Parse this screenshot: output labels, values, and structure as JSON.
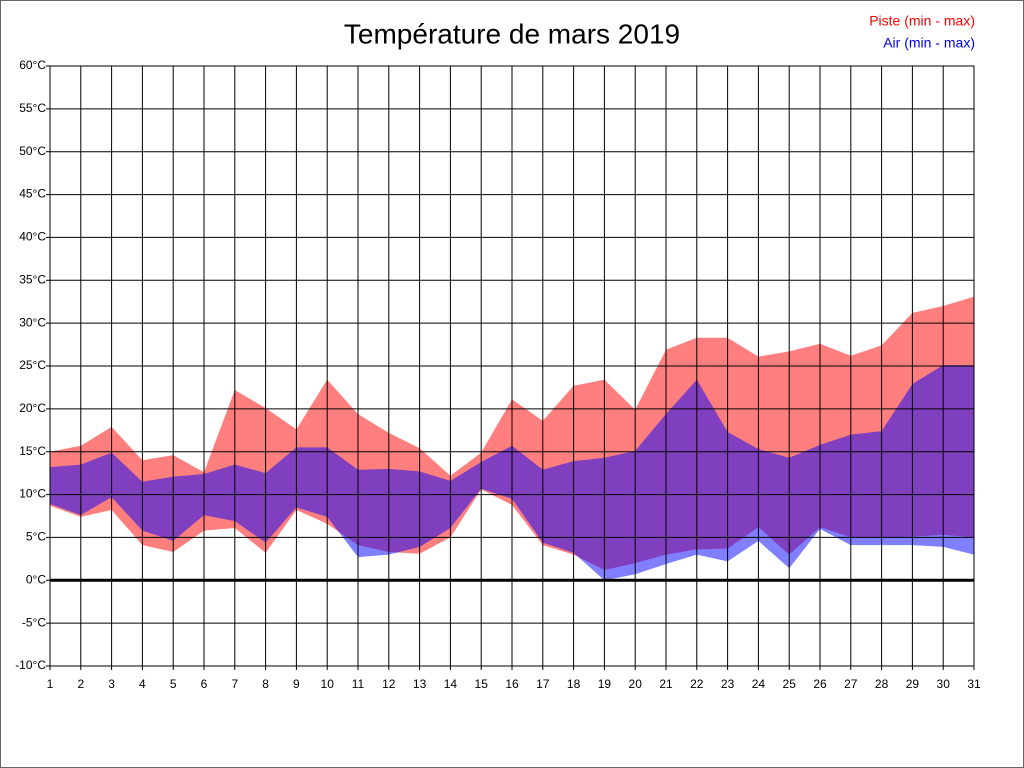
{
  "chart_data": {
    "type": "range-area",
    "title": "Température de mars 2019",
    "x": [
      1,
      2,
      3,
      4,
      5,
      6,
      7,
      8,
      9,
      10,
      11,
      12,
      13,
      14,
      15,
      16,
      17,
      18,
      19,
      20,
      21,
      22,
      23,
      24,
      25,
      26,
      27,
      28,
      29,
      30,
      31
    ],
    "xlim": [
      1,
      31
    ],
    "xticks": [
      1,
      2,
      3,
      4,
      5,
      6,
      7,
      8,
      9,
      10,
      11,
      12,
      13,
      14,
      15,
      16,
      17,
      18,
      19,
      20,
      21,
      22,
      23,
      24,
      25,
      26,
      27,
      28,
      29,
      30,
      31
    ],
    "ylim": [
      -10,
      60
    ],
    "yticks": [
      {
        "value": -10,
        "label": "-10°C"
      },
      {
        "value": -5,
        "label": "-5°C"
      },
      {
        "value": 0,
        "label": "0°C"
      },
      {
        "value": 5,
        "label": "5°C"
      },
      {
        "value": 10,
        "label": "10°C"
      },
      {
        "value": 15,
        "label": "15°C"
      },
      {
        "value": 20,
        "label": "20°C"
      },
      {
        "value": 25,
        "label": "25°C"
      },
      {
        "value": 30,
        "label": "30°C"
      },
      {
        "value": 35,
        "label": "35°C"
      },
      {
        "value": 40,
        "label": "40°C"
      },
      {
        "value": 45,
        "label": "45°C"
      },
      {
        "value": 50,
        "label": "50°C"
      },
      {
        "value": 55,
        "label": "55°C"
      },
      {
        "value": 60,
        "label": "60°C"
      }
    ],
    "grid": true,
    "legend": "top-right",
    "series": [
      {
        "name": "Piste (min - max)",
        "color": "#ff0000",
        "low": [
          8.7,
          7.4,
          8.2,
          4.1,
          3.3,
          5.8,
          6.1,
          3.2,
          8.2,
          6.6,
          4.1,
          3.3,
          3.1,
          5.0,
          10.6,
          8.8,
          4.1,
          3.0,
          1.2,
          2.0,
          3.0,
          3.6,
          3.7,
          6.2,
          3.0,
          6.2,
          5.0,
          5.0,
          5.1,
          5.3,
          5.0
        ],
        "high": [
          15.0,
          15.7,
          17.9,
          14.0,
          14.6,
          12.6,
          22.2,
          20.1,
          17.6,
          23.4,
          19.4,
          17.2,
          15.4,
          12.2,
          14.9,
          21.1,
          18.6,
          22.7,
          23.4,
          19.9,
          26.9,
          28.3,
          28.3,
          26.1,
          26.7,
          27.6,
          26.2,
          27.4,
          31.2,
          32.0,
          33.1
        ]
      },
      {
        "name": "Air (min - max)",
        "color": "#0000ff",
        "low": [
          8.9,
          7.6,
          9.7,
          5.8,
          4.6,
          7.6,
          6.9,
          4.4,
          8.5,
          7.4,
          2.7,
          3.0,
          3.9,
          6.1,
          10.7,
          9.5,
          4.4,
          3.2,
          0.0,
          0.7,
          1.9,
          3.0,
          2.2,
          4.6,
          1.4,
          6.0,
          4.1,
          4.1,
          4.1,
          3.9,
          3.0
        ],
        "high": [
          13.2,
          13.5,
          14.9,
          11.5,
          12.1,
          12.4,
          13.5,
          12.5,
          15.5,
          15.5,
          12.9,
          13.0,
          12.7,
          11.6,
          13.8,
          15.7,
          12.9,
          13.9,
          14.3,
          15.1,
          19.4,
          23.4,
          17.3,
          15.3,
          14.3,
          15.8,
          17.0,
          17.4,
          22.9,
          25.1,
          25.1
        ]
      }
    ]
  }
}
